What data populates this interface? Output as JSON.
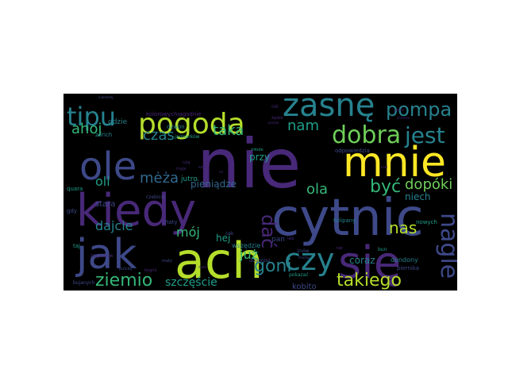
{
  "colors": {
    "background": "#000000",
    "page": "#ffffff",
    "viridis": {
      "purple": "#482878",
      "indigo": "#3e4989",
      "blue": "#31688e",
      "teal": "#26828e",
      "green": "#1f9e89",
      "lightgreen": "#35b779",
      "lime": "#6ece58",
      "yellow": "#b5de2b",
      "bright": "#fde725"
    }
  },
  "words": [
    {
      "text": "nie",
      "weight": 1.0,
      "color": "purple"
    },
    {
      "text": "cytnic",
      "weight": 0.95,
      "color": "indigo"
    },
    {
      "text": "kiedy",
      "weight": 0.9,
      "color": "purple"
    },
    {
      "text": "ole",
      "weight": 0.85,
      "color": "indigo"
    },
    {
      "text": "ach",
      "weight": 0.85,
      "color": "yellow"
    },
    {
      "text": "mnie",
      "weight": 0.8,
      "color": "bright"
    },
    {
      "text": "jak",
      "weight": 0.8,
      "color": "indigo"
    },
    {
      "text": "się",
      "weight": 0.75,
      "color": "purple"
    },
    {
      "text": "zasnę",
      "weight": 0.65,
      "color": "teal"
    },
    {
      "text": "pogoda",
      "weight": 0.6,
      "color": "yellow"
    },
    {
      "text": "tipu",
      "weight": 0.55,
      "color": "teal"
    },
    {
      "text": "czy",
      "weight": 0.55,
      "color": "teal"
    },
    {
      "text": "dobra",
      "weight": 0.5,
      "color": "lime"
    },
    {
      "text": "jest",
      "weight": 0.45,
      "color": "teal"
    },
    {
      "text": "pompa",
      "weight": 0.4,
      "color": "teal"
    },
    {
      "text": "nagle",
      "weight": 0.4,
      "color": "indigo"
    },
    {
      "text": "ziemio",
      "weight": 0.35,
      "color": "lightgreen"
    },
    {
      "text": "takiego",
      "weight": 0.35,
      "color": "yellow"
    },
    {
      "text": "goni",
      "weight": 0.35,
      "color": "teal"
    },
    {
      "text": "być",
      "weight": 0.33,
      "color": "lightgreen"
    },
    {
      "text": "dać",
      "weight": 0.33,
      "color": "purple"
    },
    {
      "text": "nas",
      "weight": 0.3,
      "color": "yellow"
    },
    {
      "text": "nam",
      "weight": 0.3,
      "color": "green"
    },
    {
      "text": "taka",
      "weight": 0.3,
      "color": "lightgreen"
    },
    {
      "text": "czas",
      "weight": 0.3,
      "color": "teal"
    },
    {
      "text": "ahoj",
      "weight": 0.28,
      "color": "lightgreen"
    },
    {
      "text": "mėża",
      "weight": 0.28,
      "color": "blue"
    },
    {
      "text": "ola",
      "weight": 0.28,
      "color": "lightgreen"
    },
    {
      "text": "oli",
      "weight": 0.28,
      "color": "green"
    },
    {
      "text": "dopóki",
      "weight": 0.25,
      "color": "lime"
    },
    {
      "text": "szczęście",
      "weight": 0.22,
      "color": "green"
    },
    {
      "text": "dajcie",
      "weight": 0.22,
      "color": "teal"
    },
    {
      "text": "mój",
      "weight": 0.22,
      "color": "lightgreen"
    },
    {
      "text": "już",
      "weight": 0.2,
      "color": "lightgreen"
    },
    {
      "text": "coraz",
      "weight": 0.15,
      "color": "teal"
    },
    {
      "text": "pieniądze",
      "weight": 0.15,
      "color": "blue"
    },
    {
      "text": "niech",
      "weight": 0.15,
      "color": "teal"
    },
    {
      "text": "przy",
      "weight": 0.15,
      "color": "green"
    },
    {
      "text": "hej",
      "weight": 0.15,
      "color": "green"
    },
    {
      "text": "kobito",
      "weight": 0.12,
      "color": "indigo"
    },
    {
      "text": "stara",
      "weight": 0.12,
      "color": "indigo"
    },
    {
      "text": "wszędzie",
      "weight": 0.1,
      "color": "teal"
    },
    {
      "text": "dondony",
      "weight": 0.1,
      "color": "teal"
    },
    {
      "text": "nowych",
      "weight": 0.1,
      "color": "green"
    },
    {
      "text": "pan",
      "weight": 0.1,
      "color": "indigo"
    },
    {
      "text": "gdzie",
      "weight": 0.1,
      "color": "teal"
    },
    {
      "text": "jutro",
      "weight": 0.1,
      "color": "green"
    },
    {
      "text": "kolorowychiagodnie",
      "weight": 0.08,
      "color": "purple"
    },
    {
      "text": "tulipany",
      "weight": 0.08,
      "color": "teal"
    },
    {
      "text": "dzwon",
      "weight": 0.08,
      "color": "teal"
    },
    {
      "text": "zdrich",
      "weight": 0.08,
      "color": "teal"
    },
    {
      "text": "odpowiedzia",
      "weight": 0.08,
      "color": "indigo"
    },
    {
      "text": "piernika",
      "weight": 0.08,
      "color": "indigo"
    },
    {
      "text": "bujanych",
      "weight": 0.07,
      "color": "indigo"
    },
    {
      "text": "pokazać",
      "weight": 0.07,
      "color": "green"
    },
    {
      "text": "chaty",
      "weight": 0.07,
      "color": "indigo"
    },
    {
      "text": "zegarków",
      "weight": 0.07,
      "color": "purple"
    },
    {
      "text": "jarmarków",
      "weight": 0.07,
      "color": "green"
    },
    {
      "text": "dogonisz",
      "weight": 0.07,
      "color": "indigo"
    },
    {
      "text": "bun",
      "weight": 0.07,
      "color": "green"
    },
    {
      "text": "taj",
      "weight": 0.07,
      "color": "green"
    },
    {
      "text": "gdy",
      "weight": 0.07,
      "color": "indigo"
    },
    {
      "text": "quara",
      "weight": 0.07,
      "color": "green"
    },
    {
      "text": "cok",
      "weight": 0.07,
      "color": "indigo"
    },
    {
      "text": "czebicej",
      "weight": 0.06,
      "color": "indigo"
    },
    {
      "text": "pulciej",
      "weight": 0.06,
      "color": "indigo"
    },
    {
      "text": "szyk",
      "weight": 0.06,
      "color": "purple"
    },
    {
      "text": "znów",
      "weight": 0.06,
      "color": "indigo"
    },
    {
      "text": "tak",
      "weight": 0.06,
      "color": "purple"
    },
    {
      "text": "ias",
      "weight": 0.06,
      "color": "purple"
    },
    {
      "text": "cei",
      "weight": 0.06,
      "color": "purple"
    },
    {
      "text": "myja",
      "weight": 0.06,
      "color": "purple"
    },
    {
      "text": "ryją",
      "weight": 0.06,
      "color": "purple"
    },
    {
      "text": "maty",
      "weight": 0.05,
      "color": "indigo"
    },
    {
      "text": "bogini",
      "weight": 0.05,
      "color": "purple"
    },
    {
      "text": "żądze",
      "weight": 0.05,
      "color": "purple"
    },
    {
      "text": "młode",
      "weight": 0.05,
      "color": "green"
    },
    {
      "text": "cukromej",
      "weight": 0.04,
      "color": "indigo"
    },
    {
      "text": "choćby",
      "weight": 0.04,
      "color": "indigo"
    },
    {
      "text": "zmierza",
      "weight": 0.04,
      "color": "purple"
    },
    {
      "text": "pędzili",
      "weight": 0.04,
      "color": "purple"
    },
    {
      "text": "proszę",
      "weight": 0.04,
      "color": "purple"
    },
    {
      "text": "krwi",
      "weight": 0.04,
      "color": "purple"
    },
    {
      "text": "mała",
      "weight": 0.04,
      "color": "purple"
    },
    {
      "text": "mi",
      "weight": 0.04,
      "color": "purple"
    }
  ]
}
